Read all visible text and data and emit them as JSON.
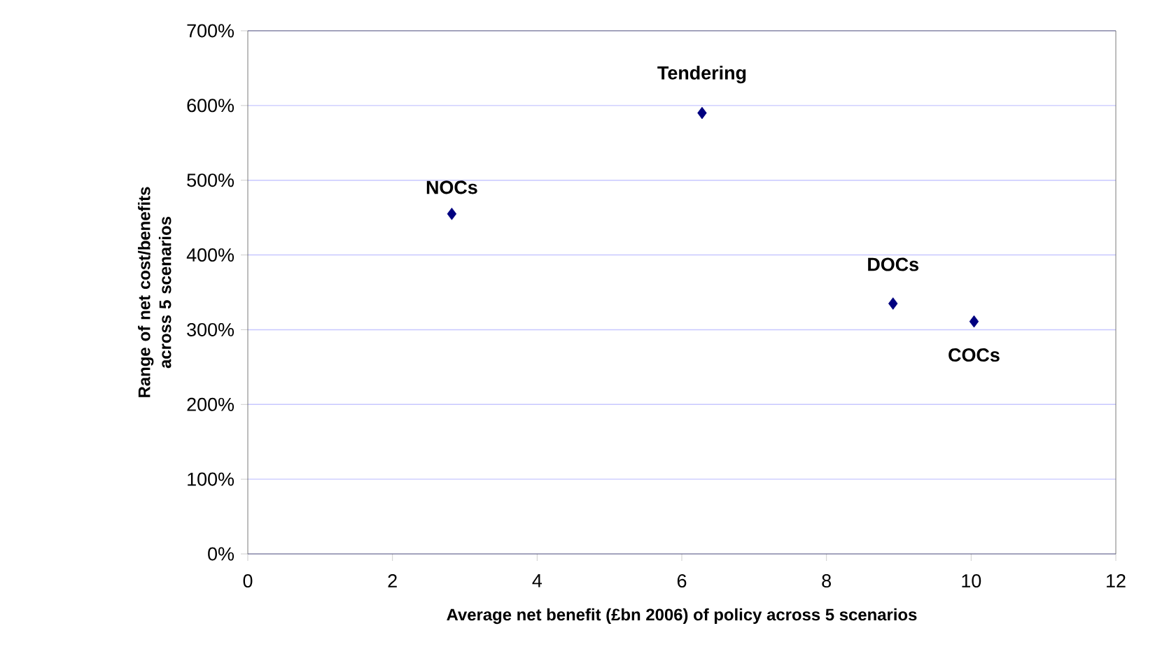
{
  "chart_data": {
    "type": "scatter",
    "xlabel": "Average net benefit (£bn 2006) of policy across 5 scenarios",
    "ylabel": "Range of net cost/benefits across 5 scenarios",
    "x": [
      2.82,
      6.28,
      8.92,
      10.04
    ],
    "series": [
      {
        "color": "#000080",
        "values": [
          455,
          590,
          335,
          311
        ]
      }
    ],
    "marker": "diamond",
    "grid": "y",
    "xlim": [
      0,
      12
    ],
    "xticks": [
      0,
      2,
      4,
      6,
      8,
      10,
      12
    ],
    "ylim": [
      0,
      700
    ],
    "yticks": [
      {
        "value": 0,
        "label": "0%"
      },
      {
        "value": 100,
        "label": "100%"
      },
      {
        "value": 200,
        "label": "200%"
      },
      {
        "value": 300,
        "label": "300%"
      },
      {
        "value": 400,
        "label": "400%"
      },
      {
        "value": 500,
        "label": "500%"
      },
      {
        "value": 600,
        "label": "600%"
      },
      {
        "value": 700,
        "label": "700%"
      }
    ],
    "annotations": [
      {
        "text": "NOCs",
        "x": 2.82,
        "y": 455
      },
      {
        "text": "Tendering",
        "x": 6.28,
        "y": 590
      },
      {
        "text": "DOCs",
        "x": 8.92,
        "y": 335
      },
      {
        "text": "COCs",
        "x": 10.04,
        "y": 311
      }
    ]
  }
}
